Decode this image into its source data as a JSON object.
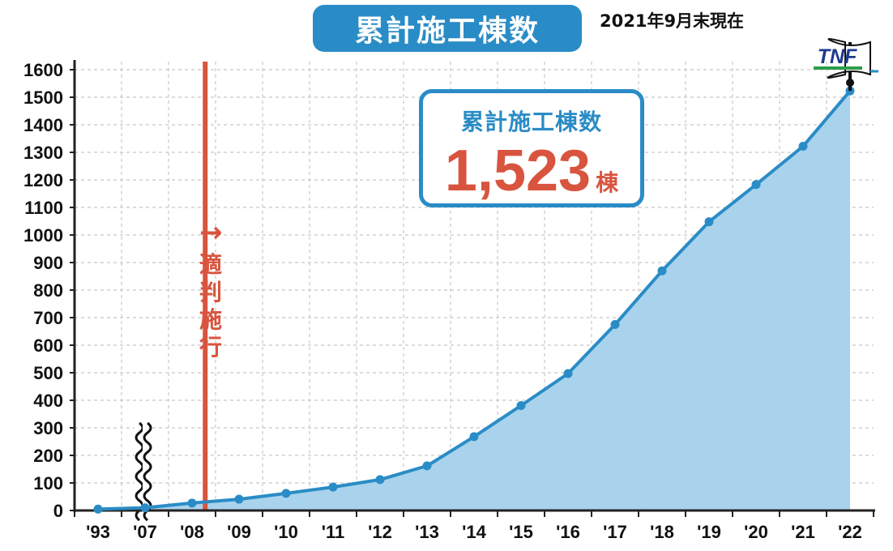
{
  "header": {
    "title": "累計施工棟数",
    "as_of": "2021年9月末現在"
  },
  "callout": {
    "label": "累計施工棟数",
    "value": "1,523",
    "unit": "棟"
  },
  "event": {
    "arrow": "→",
    "label": "適判施行"
  },
  "brand": {
    "logo_text": "TNF"
  },
  "colors": {
    "primary": "#2a8cc6",
    "fill": "#a9d3ec",
    "accent": "#d9543e",
    "grid": "#c8c8c8",
    "axis": "#222222"
  },
  "chart_data": {
    "type": "area",
    "title": "累計施工棟数",
    "x_ticks": [
      "'93",
      "'07",
      "'08",
      "'09",
      "'10",
      "'11",
      "'12",
      "'13",
      "'14",
      "'15",
      "'16",
      "'17",
      "'18",
      "'19",
      "'20",
      "'21",
      "'22"
    ],
    "y_ticks": [
      0,
      100,
      200,
      300,
      400,
      500,
      600,
      700,
      800,
      900,
      1000,
      1100,
      1200,
      1300,
      1400,
      1500,
      1600
    ],
    "ylim": [
      0,
      1600
    ],
    "axis_break": "between '93 and '07",
    "event_marker": {
      "label": "適判施行",
      "position": "'08"
    },
    "points": [
      {
        "x": "'93",
        "y": 5
      },
      {
        "x": "'07",
        "y": 10
      },
      {
        "x": "'08",
        "y": 27
      },
      {
        "x": "'09",
        "y": 41
      },
      {
        "x": "'10",
        "y": 62
      },
      {
        "x": "'11",
        "y": 85
      },
      {
        "x": "'12",
        "y": 112
      },
      {
        "x": "'13",
        "y": 162
      },
      {
        "x": "'14",
        "y": 268
      },
      {
        "x": "'15",
        "y": 381
      },
      {
        "x": "'16",
        "y": 497
      },
      {
        "x": "'17",
        "y": 675
      },
      {
        "x": "'18",
        "y": 870
      },
      {
        "x": "'19",
        "y": 1048
      },
      {
        "x": "'20",
        "y": 1183
      },
      {
        "x": "'21",
        "y": 1322
      },
      {
        "x": "'22",
        "y": 1523
      }
    ],
    "grid": true,
    "legend": "none"
  }
}
